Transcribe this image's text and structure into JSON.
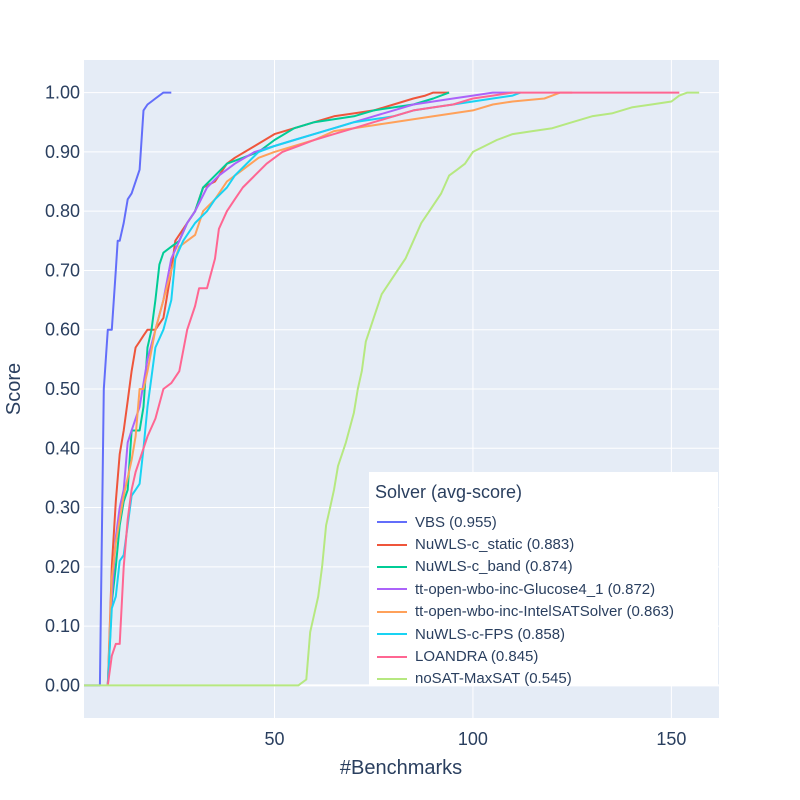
{
  "chart_data": {
    "type": "line",
    "xlabel": "#Benchmarks",
    "ylabel": "Score",
    "xlim": [
      2,
      162
    ],
    "ylim": [
      -0.055,
      1.055
    ],
    "xticks": [
      50,
      100,
      150
    ],
    "yticks": [
      0.0,
      0.1,
      0.2,
      0.3,
      0.4,
      0.5,
      0.6,
      0.7,
      0.8,
      0.9,
      1.0
    ],
    "ytick_labels": [
      "0.00",
      "0.10",
      "0.20",
      "0.30",
      "0.40",
      "0.50",
      "0.60",
      "0.70",
      "0.80",
      "0.90",
      "1.00"
    ],
    "grid": true,
    "legend_position": "bottom-right",
    "legend_title": "Solver (avg-score)",
    "series": [
      {
        "name": "VBS (0.955)",
        "color": "#636efa",
        "points": [
          [
            2,
            0
          ],
          [
            6,
            0
          ],
          [
            7,
            0.5
          ],
          [
            8,
            0.6
          ],
          [
            9,
            0.6
          ],
          [
            10,
            0.7
          ],
          [
            10.5,
            0.75
          ],
          [
            11,
            0.75
          ],
          [
            12,
            0.78
          ],
          [
            13,
            0.82
          ],
          [
            14,
            0.83
          ],
          [
            16,
            0.87
          ],
          [
            17,
            0.97
          ],
          [
            18,
            0.98
          ],
          [
            19,
            0.985
          ],
          [
            20,
            0.99
          ],
          [
            22,
            1.0
          ],
          [
            24,
            1.0
          ]
        ]
      },
      {
        "name": "NuWLS-c_static (0.883)",
        "color": "#ef553b",
        "points": [
          [
            8,
            0
          ],
          [
            9,
            0.2
          ],
          [
            10,
            0.31
          ],
          [
            11,
            0.39
          ],
          [
            12,
            0.43
          ],
          [
            13,
            0.48
          ],
          [
            14,
            0.53
          ],
          [
            15,
            0.57
          ],
          [
            16,
            0.58
          ],
          [
            17,
            0.59
          ],
          [
            18,
            0.6
          ],
          [
            20,
            0.6
          ],
          [
            22,
            0.62
          ],
          [
            24,
            0.7
          ],
          [
            25,
            0.75
          ],
          [
            28,
            0.78
          ],
          [
            30,
            0.8
          ],
          [
            32,
            0.84
          ],
          [
            35,
            0.85
          ],
          [
            38,
            0.88
          ],
          [
            40,
            0.89
          ],
          [
            45,
            0.91
          ],
          [
            50,
            0.93
          ],
          [
            55,
            0.94
          ],
          [
            60,
            0.95
          ],
          [
            65,
            0.96
          ],
          [
            70,
            0.965
          ],
          [
            75,
            0.97
          ],
          [
            80,
            0.98
          ],
          [
            85,
            0.99
          ],
          [
            88,
            0.995
          ],
          [
            90,
            1.0
          ],
          [
            94,
            1.0
          ]
        ]
      },
      {
        "name": "NuWLS-c_band (0.874)",
        "color": "#00cc96",
        "points": [
          [
            8,
            0
          ],
          [
            9,
            0.14
          ],
          [
            10,
            0.2
          ],
          [
            11,
            0.27
          ],
          [
            12,
            0.31
          ],
          [
            13,
            0.33
          ],
          [
            14,
            0.43
          ],
          [
            16,
            0.43
          ],
          [
            17,
            0.47
          ],
          [
            18,
            0.57
          ],
          [
            19,
            0.6
          ],
          [
            20,
            0.65
          ],
          [
            21,
            0.71
          ],
          [
            22,
            0.73
          ],
          [
            24,
            0.74
          ],
          [
            26,
            0.75
          ],
          [
            28,
            0.78
          ],
          [
            30,
            0.8
          ],
          [
            32,
            0.84
          ],
          [
            35,
            0.86
          ],
          [
            38,
            0.88
          ],
          [
            42,
            0.89
          ],
          [
            46,
            0.9
          ],
          [
            50,
            0.92
          ],
          [
            55,
            0.94
          ],
          [
            60,
            0.95
          ],
          [
            65,
            0.955
          ],
          [
            70,
            0.96
          ],
          [
            75,
            0.97
          ],
          [
            80,
            0.975
          ],
          [
            85,
            0.98
          ],
          [
            90,
            0.99
          ],
          [
            94,
            1.0
          ]
        ]
      },
      {
        "name": "tt-open-wbo-inc-Glucose4_1 (0.872)",
        "color": "#ab63fa",
        "points": [
          [
            8,
            0
          ],
          [
            9,
            0.15
          ],
          [
            10,
            0.25
          ],
          [
            11,
            0.3
          ],
          [
            12,
            0.33
          ],
          [
            13,
            0.41
          ],
          [
            14,
            0.43
          ],
          [
            16,
            0.47
          ],
          [
            18,
            0.55
          ],
          [
            20,
            0.6
          ],
          [
            22,
            0.65
          ],
          [
            24,
            0.72
          ],
          [
            26,
            0.75
          ],
          [
            28,
            0.78
          ],
          [
            30,
            0.8
          ],
          [
            33,
            0.84
          ],
          [
            36,
            0.86
          ],
          [
            40,
            0.88
          ],
          [
            45,
            0.9
          ],
          [
            50,
            0.91
          ],
          [
            55,
            0.92
          ],
          [
            60,
            0.93
          ],
          [
            65,
            0.94
          ],
          [
            70,
            0.95
          ],
          [
            75,
            0.96
          ],
          [
            80,
            0.97
          ],
          [
            85,
            0.98
          ],
          [
            90,
            0.985
          ],
          [
            95,
            0.99
          ],
          [
            100,
            0.995
          ],
          [
            105,
            1.0
          ],
          [
            110,
            1.0
          ]
        ]
      },
      {
        "name": "tt-open-wbo-inc-IntelSATSolver (0.863)",
        "color": "#ffa15a",
        "points": [
          [
            8,
            0
          ],
          [
            9,
            0.18
          ],
          [
            10,
            0.24
          ],
          [
            11,
            0.28
          ],
          [
            12,
            0.32
          ],
          [
            14,
            0.38
          ],
          [
            15,
            0.42
          ],
          [
            16,
            0.5
          ],
          [
            17,
            0.5
          ],
          [
            18,
            0.53
          ],
          [
            20,
            0.6
          ],
          [
            22,
            0.65
          ],
          [
            24,
            0.7
          ],
          [
            26,
            0.74
          ],
          [
            28,
            0.75
          ],
          [
            30,
            0.76
          ],
          [
            32,
            0.8
          ],
          [
            35,
            0.82
          ],
          [
            38,
            0.85
          ],
          [
            42,
            0.87
          ],
          [
            46,
            0.89
          ],
          [
            50,
            0.9
          ],
          [
            55,
            0.91
          ],
          [
            60,
            0.92
          ],
          [
            65,
            0.935
          ],
          [
            70,
            0.94
          ],
          [
            75,
            0.945
          ],
          [
            80,
            0.95
          ],
          [
            90,
            0.96
          ],
          [
            100,
            0.97
          ],
          [
            105,
            0.98
          ],
          [
            110,
            0.985
          ],
          [
            118,
            0.99
          ],
          [
            120,
            0.995
          ],
          [
            122,
            1.0
          ],
          [
            125,
            1.0
          ]
        ]
      },
      {
        "name": "NuWLS-c-FPS (0.858)",
        "color": "#19d3f3",
        "points": [
          [
            8,
            0
          ],
          [
            9,
            0.13
          ],
          [
            10,
            0.15
          ],
          [
            11,
            0.21
          ],
          [
            12,
            0.22
          ],
          [
            13,
            0.27
          ],
          [
            14,
            0.32
          ],
          [
            15,
            0.33
          ],
          [
            16,
            0.34
          ],
          [
            17,
            0.4
          ],
          [
            18,
            0.47
          ],
          [
            19,
            0.52
          ],
          [
            20,
            0.57
          ],
          [
            22,
            0.6
          ],
          [
            24,
            0.65
          ],
          [
            25,
            0.72
          ],
          [
            27,
            0.75
          ],
          [
            30,
            0.78
          ],
          [
            33,
            0.8
          ],
          [
            35,
            0.82
          ],
          [
            38,
            0.84
          ],
          [
            40,
            0.86
          ],
          [
            43,
            0.88
          ],
          [
            46,
            0.9
          ],
          [
            50,
            0.91
          ],
          [
            55,
            0.92
          ],
          [
            60,
            0.93
          ],
          [
            65,
            0.94
          ],
          [
            70,
            0.95
          ],
          [
            75,
            0.955
          ],
          [
            80,
            0.96
          ],
          [
            85,
            0.97
          ],
          [
            90,
            0.975
          ],
          [
            95,
            0.98
          ],
          [
            100,
            0.985
          ],
          [
            105,
            0.99
          ],
          [
            110,
            0.995
          ],
          [
            112,
            1.0
          ]
        ]
      },
      {
        "name": "LOANDRA (0.845)",
        "color": "#ff6692",
        "points": [
          [
            8,
            0
          ],
          [
            9,
            0.05
          ],
          [
            10,
            0.07
          ],
          [
            11,
            0.07
          ],
          [
            12,
            0.2
          ],
          [
            13,
            0.28
          ],
          [
            14,
            0.33
          ],
          [
            15,
            0.36
          ],
          [
            16,
            0.38
          ],
          [
            18,
            0.42
          ],
          [
            20,
            0.45
          ],
          [
            22,
            0.5
          ],
          [
            24,
            0.51
          ],
          [
            26,
            0.53
          ],
          [
            28,
            0.6
          ],
          [
            30,
            0.64
          ],
          [
            31,
            0.67
          ],
          [
            33,
            0.67
          ],
          [
            35,
            0.72
          ],
          [
            36,
            0.77
          ],
          [
            38,
            0.8
          ],
          [
            40,
            0.82
          ],
          [
            42,
            0.84
          ],
          [
            45,
            0.86
          ],
          [
            48,
            0.88
          ],
          [
            52,
            0.9
          ],
          [
            56,
            0.91
          ],
          [
            60,
            0.92
          ],
          [
            65,
            0.93
          ],
          [
            70,
            0.94
          ],
          [
            75,
            0.95
          ],
          [
            80,
            0.96
          ],
          [
            85,
            0.97
          ],
          [
            90,
            0.975
          ],
          [
            95,
            0.98
          ],
          [
            100,
            0.99
          ],
          [
            105,
            0.995
          ],
          [
            110,
            1.0
          ],
          [
            152,
            1.0
          ]
        ]
      },
      {
        "name": "noSAT-MaxSAT (0.545)",
        "color": "#b6e880",
        "points": [
          [
            2,
            0
          ],
          [
            56,
            0
          ],
          [
            58,
            0.01
          ],
          [
            59,
            0.09
          ],
          [
            60,
            0.12
          ],
          [
            61,
            0.15
          ],
          [
            62,
            0.2
          ],
          [
            63,
            0.27
          ],
          [
            64,
            0.3
          ],
          [
            65,
            0.33
          ],
          [
            66,
            0.37
          ],
          [
            67,
            0.39
          ],
          [
            68,
            0.41
          ],
          [
            70,
            0.46
          ],
          [
            71,
            0.5
          ],
          [
            72,
            0.53
          ],
          [
            73,
            0.58
          ],
          [
            74,
            0.6
          ],
          [
            75,
            0.62
          ],
          [
            77,
            0.66
          ],
          [
            79,
            0.68
          ],
          [
            81,
            0.7
          ],
          [
            83,
            0.72
          ],
          [
            85,
            0.75
          ],
          [
            87,
            0.78
          ],
          [
            89,
            0.8
          ],
          [
            92,
            0.83
          ],
          [
            94,
            0.86
          ],
          [
            96,
            0.87
          ],
          [
            98,
            0.88
          ],
          [
            100,
            0.9
          ],
          [
            103,
            0.91
          ],
          [
            106,
            0.92
          ],
          [
            110,
            0.93
          ],
          [
            115,
            0.935
          ],
          [
            120,
            0.94
          ],
          [
            125,
            0.95
          ],
          [
            130,
            0.96
          ],
          [
            135,
            0.965
          ],
          [
            140,
            0.975
          ],
          [
            145,
            0.98
          ],
          [
            150,
            0.985
          ],
          [
            152,
            0.995
          ],
          [
            154,
            1.0
          ],
          [
            157,
            1.0
          ]
        ]
      }
    ]
  }
}
